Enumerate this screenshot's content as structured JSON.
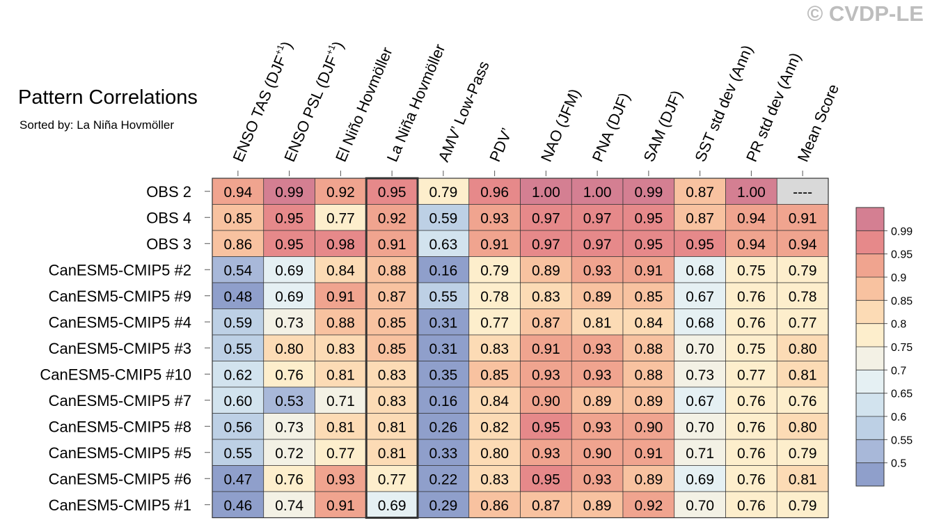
{
  "title": "Pattern Correlations",
  "subtitle": "Sorted by: La Niña Hovmöller",
  "watermark": "© CVDP-LE",
  "chart_data": {
    "type": "heatmap",
    "title": "Pattern Correlations",
    "sorted_by": "La Niña Hovmöller",
    "highlighted_column": "La Niña Hovmöller",
    "columns": [
      {
        "main": "ENSO TAS (DJF",
        "sup": "+1",
        "close": ")"
      },
      {
        "main": "ENSO PSL (DJF",
        "sup": "+1",
        "close": ")"
      },
      {
        "main": "El Niño Hovmöller",
        "sup": "",
        "close": ""
      },
      {
        "main": "La Niña Hovmöller",
        "sup": "",
        "close": ""
      },
      {
        "main": "AMV’ Low-Pass",
        "sup": "",
        "close": ""
      },
      {
        "main": "PDV’",
        "sup": "",
        "close": ""
      },
      {
        "main": "NAO (JFM)",
        "sup": "",
        "close": ""
      },
      {
        "main": "PNA (DJF)",
        "sup": "",
        "close": ""
      },
      {
        "main": "SAM (DJF)",
        "sup": "",
        "close": ""
      },
      {
        "main": "SST std dev (Ann)",
        "sup": "",
        "close": ""
      },
      {
        "main": "PR std dev (Ann)",
        "sup": "",
        "close": ""
      },
      {
        "main": "Mean Score",
        "sup": "",
        "close": ""
      }
    ],
    "rows": [
      {
        "name": "OBS 2",
        "values": [
          "0.94",
          "0.99",
          "0.92",
          "0.95",
          "0.79",
          "0.96",
          "1.00",
          "1.00",
          "0.99",
          "0.87",
          "1.00",
          "----"
        ]
      },
      {
        "name": "OBS 4",
        "values": [
          "0.85",
          "0.95",
          "0.77",
          "0.92",
          "0.59",
          "0.93",
          "0.97",
          "0.97",
          "0.95",
          "0.87",
          "0.94",
          "0.91"
        ]
      },
      {
        "name": "OBS 3",
        "values": [
          "0.86",
          "0.95",
          "0.98",
          "0.91",
          "0.63",
          "0.91",
          "0.97",
          "0.97",
          "0.95",
          "0.95",
          "0.94",
          "0.94"
        ]
      },
      {
        "name": "CanESM5-CMIP5 #2",
        "values": [
          "0.54",
          "0.69",
          "0.84",
          "0.88",
          "0.16",
          "0.79",
          "0.89",
          "0.93",
          "0.91",
          "0.68",
          "0.75",
          "0.79"
        ]
      },
      {
        "name": "CanESM5-CMIP5 #9",
        "values": [
          "0.48",
          "0.69",
          "0.91",
          "0.87",
          "0.55",
          "0.78",
          "0.83",
          "0.89",
          "0.85",
          "0.67",
          "0.76",
          "0.78"
        ]
      },
      {
        "name": "CanESM5-CMIP5 #4",
        "values": [
          "0.59",
          "0.73",
          "0.88",
          "0.85",
          "0.31",
          "0.77",
          "0.87",
          "0.81",
          "0.84",
          "0.68",
          "0.76",
          "0.77"
        ]
      },
      {
        "name": "CanESM5-CMIP5 #3",
        "values": [
          "0.55",
          "0.80",
          "0.83",
          "0.85",
          "0.31",
          "0.83",
          "0.91",
          "0.93",
          "0.88",
          "0.70",
          "0.75",
          "0.80"
        ]
      },
      {
        "name": "CanESM5-CMIP5 #10",
        "values": [
          "0.62",
          "0.76",
          "0.81",
          "0.83",
          "0.35",
          "0.85",
          "0.93",
          "0.93",
          "0.88",
          "0.73",
          "0.77",
          "0.81"
        ]
      },
      {
        "name": "CanESM5-CMIP5 #7",
        "values": [
          "0.60",
          "0.53",
          "0.71",
          "0.83",
          "0.16",
          "0.84",
          "0.90",
          "0.89",
          "0.89",
          "0.67",
          "0.76",
          "0.76"
        ]
      },
      {
        "name": "CanESM5-CMIP5 #8",
        "values": [
          "0.56",
          "0.73",
          "0.81",
          "0.81",
          "0.26",
          "0.82",
          "0.95",
          "0.93",
          "0.90",
          "0.70",
          "0.76",
          "0.80"
        ]
      },
      {
        "name": "CanESM5-CMIP5 #5",
        "values": [
          "0.55",
          "0.72",
          "0.77",
          "0.81",
          "0.33",
          "0.80",
          "0.93",
          "0.90",
          "0.91",
          "0.71",
          "0.76",
          "0.79"
        ]
      },
      {
        "name": "CanESM5-CMIP5 #6",
        "values": [
          "0.47",
          "0.76",
          "0.93",
          "0.77",
          "0.22",
          "0.83",
          "0.95",
          "0.93",
          "0.89",
          "0.69",
          "0.76",
          "0.81"
        ]
      },
      {
        "name": "CanESM5-CMIP5 #1",
        "values": [
          "0.46",
          "0.74",
          "0.91",
          "0.69",
          "0.29",
          "0.86",
          "0.87",
          "0.89",
          "0.92",
          "0.70",
          "0.76",
          "0.79"
        ]
      }
    ],
    "missing_color": "#d9d9d9",
    "colorbar": {
      "boundaries": [
        0.5,
        0.55,
        0.6,
        0.65,
        0.7,
        0.75,
        0.8,
        0.85,
        0.9,
        0.95,
        0.99
      ],
      "labels": [
        "0.5",
        "0.55",
        "0.6",
        "0.65",
        "0.7",
        "0.75",
        "0.8",
        "0.85",
        "0.9",
        "0.95",
        "0.99"
      ],
      "colors": [
        "#8f9fcb",
        "#a8b8d9",
        "#bdd0e5",
        "#d2e3ee",
        "#e5f0f3",
        "#f3f1e5",
        "#fdeecc",
        "#fcdbb5",
        "#f8c2a0",
        "#f0a48f",
        "#e6898a",
        "#d47f92"
      ]
    }
  }
}
